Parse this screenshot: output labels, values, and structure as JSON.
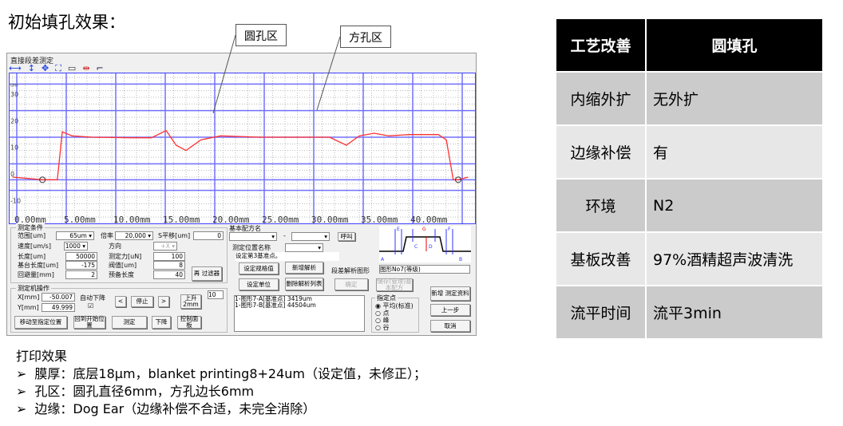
{
  "title": "初始填孔效果：",
  "callouts": {
    "round": "圆孔区",
    "square": "方孔区"
  },
  "window": {
    "title": "直接段差测定",
    "toolbar_icons": [
      "arrow-horizontal-icon",
      "arrow-vertical-icon",
      "move-icon",
      "fit-icon",
      "rect-icon",
      "level-icon",
      "step-icon"
    ],
    "conditions": {
      "group": "测定条件",
      "range_label": "范围[um]",
      "range": "65um",
      "magnification_label": "倍率",
      "magnification": "20,000",
      "s_shift_label": "S平移[um]",
      "s_shift": "0",
      "speed_label": "速度[um/s]",
      "speed": "1000",
      "direction_label": "方向",
      "direction": "+X",
      "length_label": "长度[um]",
      "length": "50000",
      "force_label": "测定力[uN]",
      "force": "100",
      "base_length_label": "基台长度[um]",
      "base_length": "-175",
      "threshold_label": "阀值[um]",
      "threshold": "8",
      "retract_label": "回避量[mm]",
      "retract": "2",
      "spare_label": "预备长度",
      "spare": "40",
      "filter_btn": "再 过滤器"
    },
    "operation": {
      "group": "测定机操作",
      "x_label": "X[mm]",
      "x": "-50.007",
      "y_label": "Y[mm]",
      "y": "49.999",
      "auto_down": "自动下降",
      "left": "<",
      "stop": "停止",
      "right": ">",
      "up": "上升 2mm",
      "step": "10",
      "move_btn": "移动至指定位置",
      "return_btn": "回到开始位置",
      "measure_btn": "测定",
      "down_btn": "下降",
      "panel_btn": "控制面板"
    },
    "recipe": {
      "label": "基本配方名",
      "dash": "-",
      "call_btn": "呼叫",
      "pos_label": "测定位置名称",
      "hint": "设定第3基准点。",
      "spec_btn": "设定规格值",
      "new_analysis": "新增解析",
      "step_shape_label": "段差解析图形",
      "shape": "图形No7(等级)",
      "unit_btn": "设定单位",
      "delete_btn": "删除解析列表",
      "confirm_btn": "确定",
      "save_btn": "储存(管理)基本配方",
      "new_data_btn": "新增 测定资料",
      "prev_btn": "上一步",
      "cancel_btn": "取消",
      "list": [
        "1-图形7-A[基准点]   3419um",
        "1-图形7-B[基准点]   44504um"
      ],
      "point_group": "指定点",
      "points": [
        "平均(标准)",
        "点",
        "峰",
        "谷"
      ],
      "shape_labels": [
        "A",
        "E",
        "G",
        "F",
        "C",
        "D",
        "B"
      ]
    }
  },
  "chart_data": {
    "type": "line",
    "ylabel": "um",
    "xlabel": "",
    "x_ticks": [
      "0.00mm",
      "5.00mm",
      "10.00mm",
      "15.00mm",
      "20.00mm",
      "25.00mm",
      "30.00mm",
      "35.00mm",
      "40.00mm"
    ],
    "y_ticks": [
      "30",
      "20",
      "10",
      "0",
      "-10"
    ],
    "xlim": [
      0,
      46
    ],
    "ylim": [
      -18,
      39
    ],
    "grid": true,
    "line_color": "#ff3030",
    "x": [
      0,
      3,
      4.5,
      5,
      6,
      8,
      12,
      14,
      15.5,
      16.5,
      17.5,
      19,
      21,
      25,
      30,
      32,
      33.7,
      35,
      36.5,
      38,
      40,
      43,
      43.8,
      44.5,
      45,
      46
    ],
    "y": [
      0,
      -1,
      -1,
      17,
      15.5,
      15,
      14.8,
      14.8,
      17.5,
      12,
      10,
      14,
      15.5,
      15,
      15,
      15,
      12,
      15.5,
      16.5,
      15.5,
      16,
      16,
      14,
      -1,
      -1,
      0
    ]
  },
  "table": {
    "header": [
      "工艺改善",
      "圆填孔"
    ],
    "rows": [
      [
        "内缩外扩",
        "无外扩"
      ],
      [
        "边缘补偿",
        "有"
      ],
      [
        "环境",
        "N2"
      ],
      [
        "基板改善",
        "97%酒精超声波清洗"
      ],
      [
        "流平时间",
        "流平3min"
      ]
    ]
  },
  "print": {
    "title": "打印效果",
    "items": [
      "膜厚：底层18μm，blanket printing8+24um（设定值，未修正）；",
      "孔区：圆孔直径6mm，方孔边长6mm",
      "边缘：Dog Ear（边缘补偿不合适，未完全消除）"
    ]
  }
}
